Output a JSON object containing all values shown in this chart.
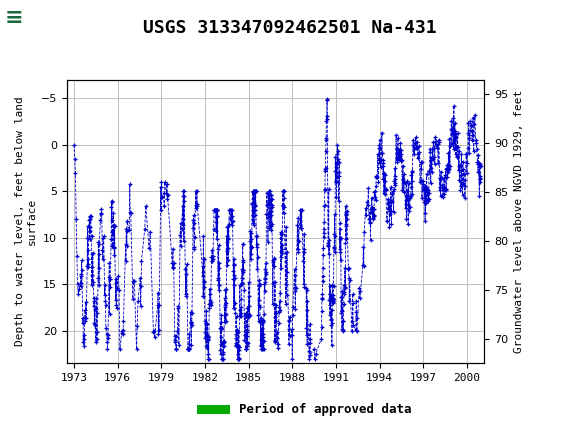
{
  "title": "USGS 313347092462501 Na-431",
  "legend_label": "Period of approved data",
  "ylabel_left": "Depth to water level, feet below land\nsurface",
  "ylabel_right": "Groundwater level above NGVD 1929, feet",
  "xlim": [
    1972.5,
    2001.2
  ],
  "ylim_left": [
    23.5,
    -7.0
  ],
  "ylim_right": [
    67.5,
    96.5
  ],
  "yticks_left": [
    -5,
    0,
    5,
    10,
    15,
    20
  ],
  "yticks_right": [
    70,
    75,
    80,
    85,
    90,
    95
  ],
  "xticks": [
    1973,
    1976,
    1979,
    1982,
    1985,
    1988,
    1991,
    1994,
    1997,
    2000
  ],
  "data_color": "#0000CC",
  "header_bg": "#1a6b3c",
  "approved_color": "#00AA00",
  "bg_color": "#ffffff",
  "grid_color": "#c0c0c0",
  "title_fontsize": 13,
  "axis_label_fontsize": 8,
  "tick_fontsize": 8,
  "legend_fontsize": 9
}
